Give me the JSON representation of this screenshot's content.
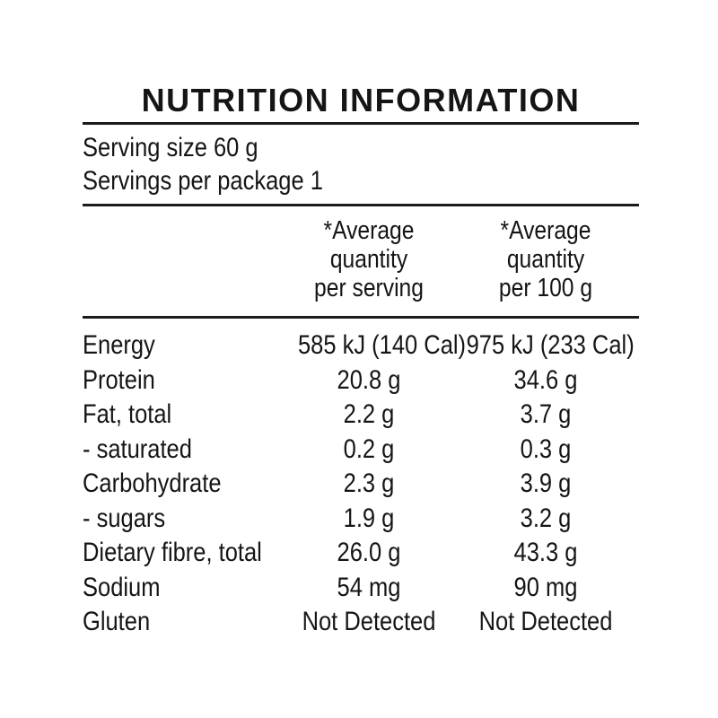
{
  "colors": {
    "background": "#ffffff",
    "text": "#151515",
    "rule": "#1b1b1b"
  },
  "panel": {
    "title": "NUTRITION INFORMATION",
    "serving_size_line": "Serving size 60 g",
    "servings_per_package_line": "Servings per package 1",
    "table": {
      "columns": [
        {
          "id": "per_serving",
          "lines": [
            "*Average",
            "quantity",
            "per serving"
          ]
        },
        {
          "id": "per_100g",
          "lines": [
            "*Average",
            "quantity",
            "per 100 g"
          ]
        }
      ],
      "rows": [
        {
          "name": "Energy",
          "per_serving": "585 kJ (140 Cal)",
          "per_100g": "975 kJ (233 Cal)"
        },
        {
          "name": "Protein",
          "per_serving": "20.8 g",
          "per_100g": "34.6 g"
        },
        {
          "name": "Fat, total",
          "per_serving": "2.2 g",
          "per_100g": "3.7 g"
        },
        {
          "name": "- saturated",
          "per_serving": "0.2 g",
          "per_100g": "0.3 g"
        },
        {
          "name": "Carbohydrate",
          "per_serving": "2.3 g",
          "per_100g": "3.9 g"
        },
        {
          "name": "- sugars",
          "per_serving": "1.9 g",
          "per_100g": "3.2 g"
        },
        {
          "name": "Dietary fibre, total",
          "per_serving": "26.0 g",
          "per_100g": "43.3 g"
        },
        {
          "name": "Sodium",
          "per_serving": "54 mg",
          "per_100g": "90 mg"
        },
        {
          "name": "Gluten",
          "per_serving": "Not Detected",
          "per_100g": "Not Detected"
        }
      ]
    }
  }
}
